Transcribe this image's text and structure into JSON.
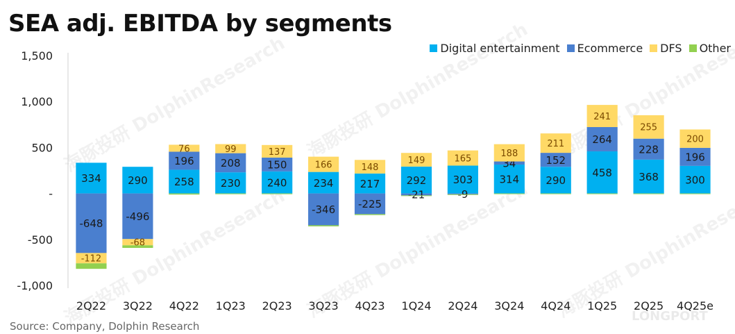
{
  "chart_data": {
    "type": "bar",
    "stacked": true,
    "title": "SEA adj. EBITDA by segments",
    "xlabel": "",
    "ylabel": "",
    "ylim": [
      -1000,
      1500
    ],
    "yticks": [
      1500,
      1000,
      500,
      0,
      -500,
      -1000
    ],
    "ytick_labels": [
      "1,500",
      "1,000",
      "500",
      "-",
      "-500",
      "-1,000"
    ],
    "legend_position": "top-right",
    "categories": [
      "2Q22",
      "3Q22",
      "4Q22",
      "1Q23",
      "2Q23",
      "3Q23",
      "4Q23",
      "1Q24",
      "2Q24",
      "3Q24",
      "4Q24",
      "1Q25",
      "2Q25",
      "4Q25e"
    ],
    "series": [
      {
        "name": "Digital entertainment",
        "color": "#00B0F0",
        "values": [
          334,
          290,
          258,
          230,
          240,
          234,
          217,
          292,
          303,
          314,
          290,
          458,
          368,
          300
        ],
        "labels": [
          "334",
          "290",
          "258",
          "230",
          "240",
          "234",
          "217",
          "292",
          "303",
          "314",
          "290",
          "458",
          "368",
          "300"
        ]
      },
      {
        "name": "Ecommerce",
        "color": "#4A7FCF",
        "values": [
          -648,
          -496,
          196,
          208,
          150,
          -346,
          -225,
          -21,
          -9,
          34,
          152,
          264,
          228,
          196
        ],
        "labels": [
          "-648",
          "-496",
          "196",
          "208",
          "150",
          "-346",
          "-225",
          "-21",
          "-9",
          "34",
          "152",
          "264",
          "228",
          "196"
        ]
      },
      {
        "name": "DFS",
        "color": "#FFD966",
        "values": [
          -112,
          -68,
          76,
          99,
          137,
          166,
          148,
          149,
          165,
          188,
          211,
          241,
          255,
          200
        ],
        "labels": [
          "-112",
          "-68",
          "76",
          "99",
          "137",
          "166",
          "148",
          "149",
          "165",
          "188",
          "211",
          "241",
          "255",
          "200"
        ]
      },
      {
        "name": "Other",
        "color": "#92D050",
        "values": [
          -60,
          -28,
          -12,
          -8,
          -8,
          -12,
          -10,
          -5,
          -5,
          -5,
          -5,
          -5,
          -5,
          -5
        ],
        "labels": []
      }
    ]
  },
  "source": "Source: Company, Dolphin Research",
  "watermark": {
    "cn": "海豚投研",
    "en": "DolphinResearch",
    "brand": "LONGPORT"
  }
}
